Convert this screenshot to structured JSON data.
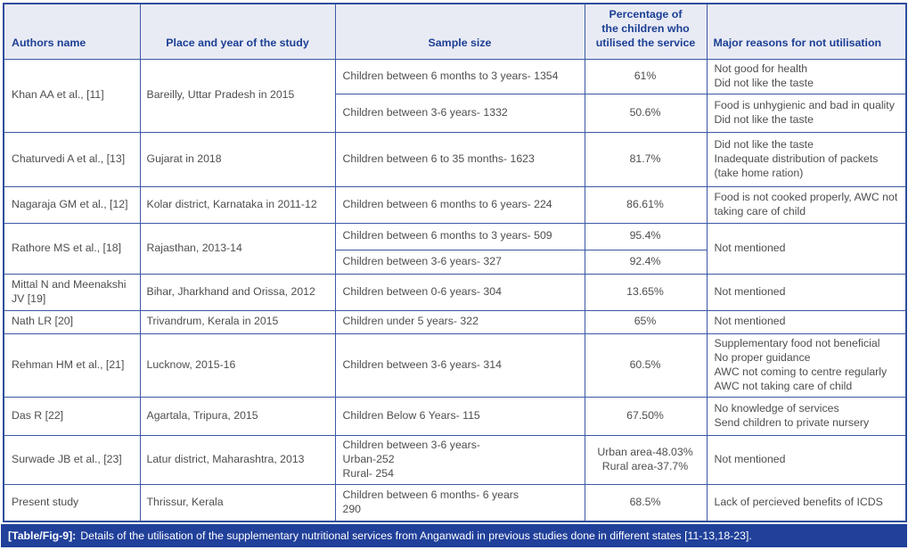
{
  "table": {
    "columns": [
      {
        "key": "authors",
        "label": "Authors name"
      },
      {
        "key": "place",
        "label": "Place and year of the study"
      },
      {
        "key": "sample",
        "label": "Sample size"
      },
      {
        "key": "percentage",
        "label": "Percentage of\nthe children who\nutilised the service"
      },
      {
        "key": "reasons",
        "label": "Major reasons for not utilisation"
      }
    ],
    "rows": [
      {
        "cells": [
          {
            "col": "authors",
            "rowspan": 2,
            "text": "Khan AA et al., [11]"
          },
          {
            "col": "place",
            "rowspan": 2,
            "text": "Bareilly, Uttar Pradesh in 2015"
          },
          {
            "col": "sample",
            "text": "Children between 6 months to 3 years- 1354"
          },
          {
            "col": "percentage",
            "text": "61%"
          },
          {
            "col": "reasons",
            "text": "Not good for health\nDid not like the taste"
          }
        ]
      },
      {
        "cells": [
          {
            "col": "sample",
            "text": "Children between 3-6 years- 1332"
          },
          {
            "col": "percentage",
            "text": "50.6%"
          },
          {
            "col": "reasons",
            "text": "Food is unhygienic and bad in quality\nDid not like the taste"
          }
        ]
      },
      {
        "cells": [
          {
            "col": "authors",
            "text": "Chaturvedi A et al., [13]"
          },
          {
            "col": "place",
            "text": "Gujarat in 2018"
          },
          {
            "col": "sample",
            "text": "Children between 6 to 35 months- 1623"
          },
          {
            "col": "percentage",
            "text": "81.7%"
          },
          {
            "col": "reasons",
            "text": "Did not like the taste\nInadequate distribution of packets\n(take home ration)"
          }
        ]
      },
      {
        "cells": [
          {
            "col": "authors",
            "text": "Nagaraja GM et al., [12]"
          },
          {
            "col": "place",
            "text": "Kolar district, Karnataka in 2011-12"
          },
          {
            "col": "sample",
            "text": "Children between 6 months to 6 years- 224"
          },
          {
            "col": "percentage",
            "text": "86.61%"
          },
          {
            "col": "reasons",
            "text": "Food is not cooked properly, AWC not taking care of child"
          }
        ]
      },
      {
        "cells": [
          {
            "col": "authors",
            "rowspan": 2,
            "text": "Rathore MS et al., [18]"
          },
          {
            "col": "place",
            "rowspan": 2,
            "text": "Rajasthan, 2013-14"
          },
          {
            "col": "sample",
            "text": "Children between 6 months to 3 years- 509"
          },
          {
            "col": "percentage",
            "text": "95.4%"
          },
          {
            "col": "reasons",
            "rowspan": 2,
            "text": "Not mentioned"
          }
        ]
      },
      {
        "cells": [
          {
            "col": "sample",
            "text": "Children between 3-6 years- 327"
          },
          {
            "col": "percentage",
            "text": "92.4%"
          }
        ]
      },
      {
        "cells": [
          {
            "col": "authors",
            "text": "Mittal N and Meenakshi JV [19]"
          },
          {
            "col": "place",
            "text": "Bihar, Jharkhand and Orissa, 2012"
          },
          {
            "col": "sample",
            "text": "Children between 0-6 years- 304"
          },
          {
            "col": "percentage",
            "text": "13.65%"
          },
          {
            "col": "reasons",
            "text": "Not mentioned"
          }
        ]
      },
      {
        "cells": [
          {
            "col": "authors",
            "text": "Nath LR [20]"
          },
          {
            "col": "place",
            "text": "Trivandrum, Kerala in 2015"
          },
          {
            "col": "sample",
            "text": "Children under 5 years- 322"
          },
          {
            "col": "percentage",
            "text": "65%"
          },
          {
            "col": "reasons",
            "text": "Not mentioned"
          }
        ]
      },
      {
        "cells": [
          {
            "col": "authors",
            "text": "Rehman HM et al., [21]"
          },
          {
            "col": "place",
            "text": "Lucknow, 2015-16"
          },
          {
            "col": "sample",
            "text": "Children between 3-6 years- 314"
          },
          {
            "col": "percentage",
            "text": "60.5%"
          },
          {
            "col": "reasons",
            "text": "Supplementary food not beneficial\nNo proper guidance\nAWC not coming to centre regularly\nAWC not taking care of child"
          }
        ]
      },
      {
        "cells": [
          {
            "col": "authors",
            "text": "Das R [22]"
          },
          {
            "col": "place",
            "text": "Agartala, Tripura, 2015"
          },
          {
            "col": "sample",
            "text": "Children Below 6 Years- 115"
          },
          {
            "col": "percentage",
            "text": "67.50%"
          },
          {
            "col": "reasons",
            "text": "No knowledge of services\nSend children to private nursery"
          }
        ]
      },
      {
        "cells": [
          {
            "col": "authors",
            "text": "Surwade JB et al., [23]"
          },
          {
            "col": "place",
            "text": "Latur district, Maharashtra, 2013"
          },
          {
            "col": "sample",
            "text": "Children between 3-6 years-\nUrban-252\nRural- 254"
          },
          {
            "col": "percentage",
            "text": "Urban area-48.03%\nRural area-37.7%"
          },
          {
            "col": "reasons",
            "text": "Not mentioned"
          }
        ]
      },
      {
        "cells": [
          {
            "col": "authors",
            "text": "Present study"
          },
          {
            "col": "place",
            "text": "Thrissur, Kerala"
          },
          {
            "col": "sample",
            "text": "Children between 6 months- 6 years\n290"
          },
          {
            "col": "percentage",
            "text": "68.5%"
          },
          {
            "col": "reasons",
            "text": "Lack of percieved benefits of ICDS"
          }
        ]
      }
    ]
  },
  "caption": {
    "label": "[Table/Fig-9]:",
    "text": "Details of the utilisation of the supplementary nutritional services from Anganwadi in previous studies done in different states [11-13,18-23]."
  },
  "colors": {
    "border_blue": "#3c58a5",
    "header_bg": "#e9ebf4",
    "header_text": "#1c3f94",
    "caption_bg": "#20409a",
    "caption_text": "#ffffff",
    "body_text": "#4d4e50"
  }
}
